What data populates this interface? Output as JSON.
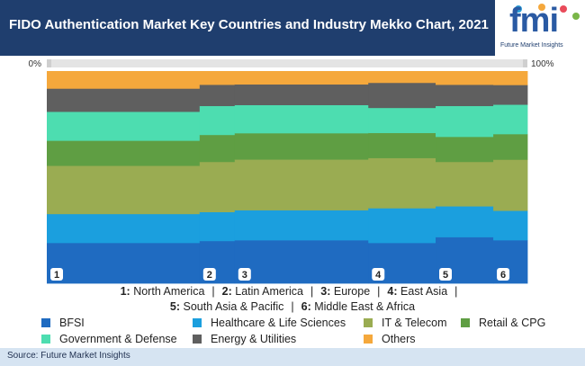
{
  "header": {
    "title": "FIDO Authentication Market Key Countries and Industry Mekko Chart, 2021",
    "logo_text": "fmi",
    "logo_subtext": "Future Market Insights"
  },
  "footer": {
    "source": "Source: Future Market Insights"
  },
  "colors": {
    "BFSI": "#1f6bc1",
    "Healthcare & Life Sciences": "#1b9fde",
    "IT & Telecom": "#9aac52",
    "Retail & CPG": "#5f9e43",
    "Government & Defense": "#4dddb0",
    "Energy & Utilities": "#5f5f5f",
    "Others": "#f5a83c"
  },
  "country_labels": {
    "line1": [
      {
        "num": "1:",
        "name": "North America"
      },
      {
        "num": "2:",
        "name": "Latin America"
      },
      {
        "num": "3:",
        "name": "Europe"
      },
      {
        "num": "4:",
        "name": "East Asia"
      }
    ],
    "line2": [
      {
        "num": "5:",
        "name": "South Asia & Pacific"
      },
      {
        "num": "6:",
        "name": "Middle East & Africa"
      }
    ],
    "separator": "|"
  },
  "chart_data": {
    "type": "mekko",
    "title": "FIDO Authentication Market Key Countries and Industry Mekko Chart, 2021",
    "x_axis_min_label": "0%",
    "x_axis_max_label": "100%",
    "segments": [
      "BFSI",
      "Healthcare & Life Sciences",
      "IT & Telecom",
      "Retail & CPG",
      "Government & Defense",
      "Energy & Utilities",
      "Others"
    ],
    "columns": [
      {
        "id": "1",
        "name": "North America",
        "width_pct": 31.8,
        "values": [
          21,
          15,
          25,
          13,
          15,
          12,
          9
        ]
      },
      {
        "id": "2",
        "name": "Latin America",
        "width_pct": 7.3,
        "values": [
          22,
          15,
          26,
          14,
          15,
          11,
          7
        ]
      },
      {
        "id": "3",
        "name": "Europe",
        "width_pct": 27.8,
        "values": [
          23,
          16,
          27,
          14,
          15,
          11,
          7
        ]
      },
      {
        "id": "4",
        "name": "East Asia",
        "width_pct": 14.0,
        "values": [
          21,
          18,
          26,
          13,
          13,
          13,
          6
        ]
      },
      {
        "id": "5",
        "name": "South Asia & Pacific",
        "width_pct": 12.0,
        "values": [
          24,
          16,
          23,
          13,
          16,
          11,
          7
        ]
      },
      {
        "id": "6",
        "name": "Middle East & Africa",
        "width_pct": 7.1,
        "values": [
          22,
          15,
          26,
          13,
          15,
          10,
          7
        ]
      }
    ]
  }
}
